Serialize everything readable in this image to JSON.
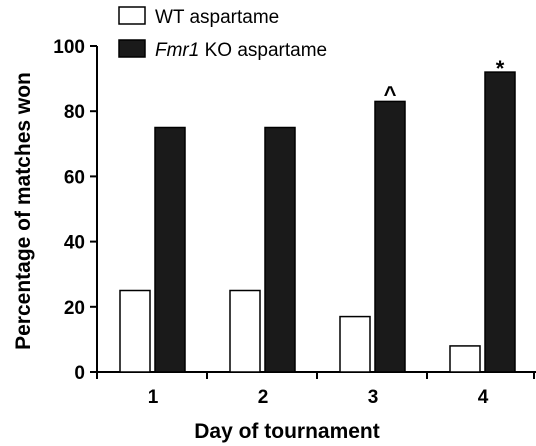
{
  "chart_data": {
    "type": "bar",
    "title": "",
    "xlabel": "Day of tournament",
    "ylabel": "Percentage of matches won",
    "categories": [
      "1",
      "2",
      "3",
      "4"
    ],
    "ylim": [
      0,
      100
    ],
    "yticks": [
      0,
      20,
      40,
      60,
      80,
      100
    ],
    "grid": false,
    "legend_position": "top-left",
    "series": [
      {
        "name": "WT aspartame",
        "name_italic_part": "",
        "name_rest": "WT aspartame",
        "values": [
          25,
          25,
          17,
          8
        ],
        "fill": "#ffffff",
        "stroke": "#000000"
      },
      {
        "name": "Fmr1 KO aspartame",
        "name_italic_part": "Fmr1",
        "name_rest": " KO aspartame",
        "values": [
          75,
          75,
          83,
          92
        ],
        "fill": "#1a1a1a",
        "stroke": "#000000"
      }
    ],
    "annotations": [
      {
        "category": "3",
        "series": 1,
        "text": "^"
      },
      {
        "category": "4",
        "series": 1,
        "text": "*"
      }
    ]
  }
}
